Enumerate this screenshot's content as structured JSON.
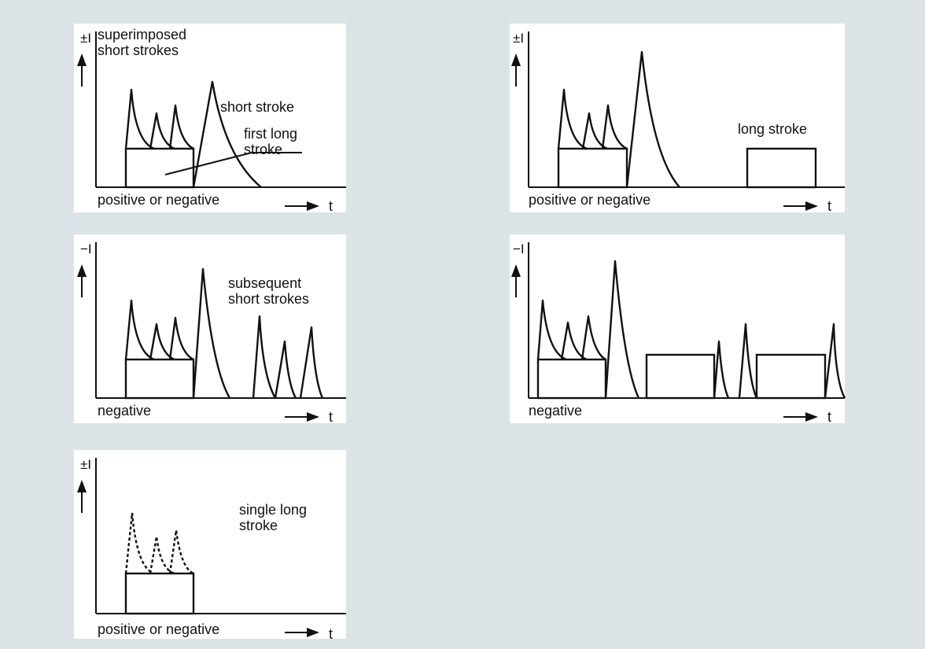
{
  "panels": [
    {
      "y_symbol": "±I",
      "polarity": "positive or negative",
      "t_label": "t",
      "annotations": [
        "superimposed\nshort strokes",
        "short stroke",
        "first long\nstroke"
      ]
    },
    {
      "y_symbol": "±I",
      "polarity": "positive or negative",
      "t_label": "t",
      "annotations": [
        "long stroke"
      ]
    },
    {
      "y_symbol": "−I",
      "polarity": "negative",
      "t_label": "t",
      "annotations": [
        "subsequent\nshort strokes"
      ]
    },
    {
      "y_symbol": "−I",
      "polarity": "negative",
      "t_label": "t",
      "annotations": []
    },
    {
      "y_symbol": "±I",
      "polarity": "positive or negative",
      "t_label": "t",
      "annotations": [
        "single long\nstroke"
      ]
    }
  ],
  "colors": {
    "background": "#dce3e6",
    "panel": "#ffffff",
    "stroke": "#111111"
  }
}
